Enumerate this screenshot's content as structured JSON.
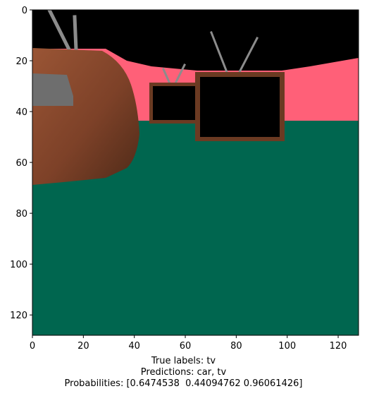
{
  "chart_data": {
    "type": "image",
    "xlim": [
      0,
      128
    ],
    "ylim": [
      128,
      0
    ],
    "x_ticks": [
      0,
      20,
      40,
      60,
      80,
      100,
      120
    ],
    "y_ticks": [
      0,
      20,
      40,
      60,
      80,
      100,
      120
    ],
    "caption": {
      "true_labels": "True labels: tv",
      "predictions": "Predictions: car, tv",
      "probabilities": "Probabilities: [0.6474538  0.44094762 0.96061426]"
    },
    "scene": {
      "sky_color": "#000000",
      "wall_color": "#ff6078",
      "floor_color": "#00664f",
      "tv_shell_color": "#8a4a2e",
      "tv_frame_color": "#6b3a22",
      "screen_color": "#000000",
      "antenna_color": "#8c8c8c"
    }
  }
}
